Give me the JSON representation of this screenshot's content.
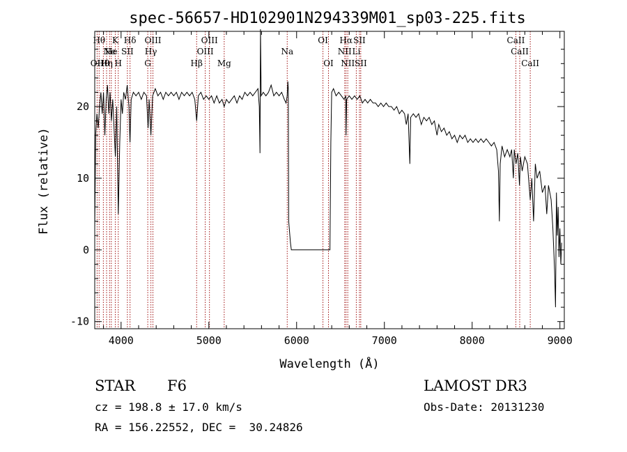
{
  "chart_data": {
    "type": "line",
    "title": "spec-56657-HD102901N294339M01_sp03-225.fits",
    "xlabel": "Wavelength (Å)",
    "ylabel": "Flux (relative)",
    "xlim": [
      3700,
      9050
    ],
    "ylim": [
      -11,
      30.5
    ],
    "xticks": [
      4000,
      5000,
      6000,
      7000,
      8000,
      9000
    ],
    "yticks": [
      -10,
      0,
      10,
      20
    ],
    "grid": false,
    "series": [
      {
        "points": [
          [
            3700,
            3
          ],
          [
            3710,
            16
          ],
          [
            3725,
            19
          ],
          [
            3740,
            17
          ],
          [
            3755,
            20
          ],
          [
            3770,
            22
          ],
          [
            3785,
            19
          ],
          [
            3800,
            22
          ],
          [
            3815,
            16
          ],
          [
            3830,
            21
          ],
          [
            3845,
            23
          ],
          [
            3860,
            19
          ],
          [
            3875,
            22
          ],
          [
            3890,
            18
          ],
          [
            3905,
            21
          ],
          [
            3920,
            17
          ],
          [
            3935,
            13
          ],
          [
            3950,
            20
          ],
          [
            3968,
            5
          ],
          [
            3985,
            15
          ],
          [
            4000,
            21
          ],
          [
            4015,
            19
          ],
          [
            4030,
            22
          ],
          [
            4050,
            21
          ],
          [
            4070,
            23
          ],
          [
            4090,
            20
          ],
          [
            4102,
            15
          ],
          [
            4115,
            21
          ],
          [
            4140,
            22
          ],
          [
            4170,
            21.5
          ],
          [
            4200,
            22
          ],
          [
            4230,
            21
          ],
          [
            4260,
            22
          ],
          [
            4290,
            21.5
          ],
          [
            4308,
            17
          ],
          [
            4320,
            21
          ],
          [
            4340,
            16
          ],
          [
            4360,
            21.5
          ],
          [
            4390,
            22.5
          ],
          [
            4420,
            21.5
          ],
          [
            4450,
            22
          ],
          [
            4480,
            21
          ],
          [
            4510,
            22
          ],
          [
            4540,
            21.5
          ],
          [
            4570,
            22
          ],
          [
            4600,
            21.5
          ],
          [
            4630,
            22
          ],
          [
            4660,
            21
          ],
          [
            4690,
            22
          ],
          [
            4720,
            21.5
          ],
          [
            4750,
            22
          ],
          [
            4780,
            21.5
          ],
          [
            4810,
            22
          ],
          [
            4840,
            21
          ],
          [
            4861,
            18
          ],
          [
            4880,
            21.5
          ],
          [
            4910,
            22
          ],
          [
            4940,
            21
          ],
          [
            4970,
            21.5
          ],
          [
            5000,
            21
          ],
          [
            5030,
            21.5
          ],
          [
            5060,
            20.5
          ],
          [
            5090,
            21.5
          ],
          [
            5120,
            20.5
          ],
          [
            5150,
            21
          ],
          [
            5175,
            20
          ],
          [
            5200,
            21
          ],
          [
            5230,
            20.5
          ],
          [
            5260,
            21
          ],
          [
            5290,
            21.5
          ],
          [
            5320,
            20.5
          ],
          [
            5350,
            21.5
          ],
          [
            5380,
            21
          ],
          [
            5410,
            22
          ],
          [
            5440,
            21.5
          ],
          [
            5470,
            22
          ],
          [
            5500,
            21.5
          ],
          [
            5530,
            22
          ],
          [
            5560,
            22.5
          ],
          [
            5575,
            20
          ],
          [
            5583,
            13.5
          ],
          [
            5588,
            31
          ],
          [
            5596,
            21.5
          ],
          [
            5620,
            22
          ],
          [
            5650,
            21.5
          ],
          [
            5680,
            22
          ],
          [
            5710,
            23
          ],
          [
            5740,
            21.5
          ],
          [
            5770,
            22
          ],
          [
            5800,
            21.5
          ],
          [
            5830,
            22
          ],
          [
            5860,
            21
          ],
          [
            5880,
            20.5
          ],
          [
            5892,
            21.5
          ],
          [
            5900,
            23.5
          ],
          [
            5905,
            22.5
          ],
          [
            5910,
            4
          ],
          [
            5930,
            1
          ],
          [
            5940,
            0
          ],
          [
            6050,
            0
          ],
          [
            6200,
            0
          ],
          [
            6380,
            0
          ],
          [
            6385,
            8
          ],
          [
            6390,
            15
          ],
          [
            6400,
            22
          ],
          [
            6420,
            22.5
          ],
          [
            6450,
            21.5
          ],
          [
            6480,
            22
          ],
          [
            6510,
            21.5
          ],
          [
            6540,
            21
          ],
          [
            6560,
            21.5
          ],
          [
            6563,
            16
          ],
          [
            6570,
            21
          ],
          [
            6600,
            21.5
          ],
          [
            6630,
            21
          ],
          [
            6660,
            21.5
          ],
          [
            6690,
            21
          ],
          [
            6720,
            21.5
          ],
          [
            6750,
            20.5
          ],
          [
            6780,
            21
          ],
          [
            6810,
            20.5
          ],
          [
            6840,
            21
          ],
          [
            6870,
            20.5
          ],
          [
            6900,
            20.5
          ],
          [
            6930,
            20
          ],
          [
            6960,
            20.5
          ],
          [
            6990,
            20
          ],
          [
            7020,
            20.5
          ],
          [
            7050,
            20
          ],
          [
            7080,
            20
          ],
          [
            7110,
            19.5
          ],
          [
            7140,
            20
          ],
          [
            7170,
            19
          ],
          [
            7200,
            19.5
          ],
          [
            7230,
            19
          ],
          [
            7250,
            17.5
          ],
          [
            7270,
            19
          ],
          [
            7290,
            12
          ],
          [
            7300,
            18.5
          ],
          [
            7330,
            19
          ],
          [
            7360,
            18.5
          ],
          [
            7390,
            19
          ],
          [
            7420,
            17.5
          ],
          [
            7450,
            18.5
          ],
          [
            7480,
            18
          ],
          [
            7510,
            18.5
          ],
          [
            7540,
            17.5
          ],
          [
            7570,
            18
          ],
          [
            7600,
            16
          ],
          [
            7620,
            17.5
          ],
          [
            7650,
            16.5
          ],
          [
            7680,
            17
          ],
          [
            7710,
            16
          ],
          [
            7740,
            16.5
          ],
          [
            7770,
            15.5
          ],
          [
            7800,
            16
          ],
          [
            7830,
            15
          ],
          [
            7860,
            16
          ],
          [
            7890,
            15.5
          ],
          [
            7920,
            16
          ],
          [
            7950,
            15
          ],
          [
            7980,
            15.5
          ],
          [
            8010,
            15
          ],
          [
            8040,
            15.5
          ],
          [
            8070,
            15
          ],
          [
            8100,
            15.5
          ],
          [
            8130,
            15
          ],
          [
            8160,
            15.5
          ],
          [
            8190,
            15
          ],
          [
            8220,
            14.5
          ],
          [
            8250,
            15
          ],
          [
            8280,
            14
          ],
          [
            8300,
            11
          ],
          [
            8310,
            4
          ],
          [
            8320,
            12
          ],
          [
            8340,
            14.5
          ],
          [
            8370,
            13
          ],
          [
            8400,
            14
          ],
          [
            8430,
            13
          ],
          [
            8450,
            14
          ],
          [
            8470,
            10
          ],
          [
            8480,
            14
          ],
          [
            8500,
            12
          ],
          [
            8520,
            13.5
          ],
          [
            8540,
            9
          ],
          [
            8550,
            13
          ],
          [
            8570,
            11
          ],
          [
            8600,
            13
          ],
          [
            8630,
            12
          ],
          [
            8662,
            7
          ],
          [
            8680,
            10
          ],
          [
            8700,
            4
          ],
          [
            8720,
            12
          ],
          [
            8740,
            10
          ],
          [
            8770,
            11
          ],
          [
            8800,
            8
          ],
          [
            8830,
            9
          ],
          [
            8850,
            5
          ],
          [
            8870,
            9
          ],
          [
            8900,
            7
          ],
          [
            8920,
            3
          ],
          [
            8940,
            -3
          ],
          [
            8950,
            -8
          ],
          [
            8960,
            8
          ],
          [
            8970,
            2
          ],
          [
            8980,
            6
          ],
          [
            8990,
            -1
          ],
          [
            9000,
            3
          ],
          [
            9010,
            -2
          ],
          [
            9020,
            1
          ]
        ]
      }
    ],
    "lines": [
      {
        "x": 3727,
        "labels": [
          "OII"
        ],
        "rows": [
          3
        ]
      },
      {
        "x": 3750,
        "labels": [
          "Hθ"
        ],
        "rows": [
          1
        ]
      },
      {
        "x": 3798,
        "labels": [
          "Hθ"
        ],
        "rows": [
          3
        ]
      },
      {
        "x": 3835,
        "labels": [
          "Hη"
        ],
        "rows": [
          3
        ]
      },
      {
        "x": 3869,
        "labels": [
          "Ne"
        ],
        "rows": [
          2
        ]
      },
      {
        "x": 3889,
        "labels": [
          "He"
        ],
        "rows": [
          2
        ]
      },
      {
        "x": 3934,
        "labels": [
          "K"
        ],
        "rows": [
          1
        ]
      },
      {
        "x": 3968,
        "labels": [
          "H"
        ],
        "rows": [
          3
        ]
      },
      {
        "x": 4072,
        "labels": [
          "SII"
        ],
        "rows": [
          2
        ]
      },
      {
        "x": 4102,
        "labels": [
          "Hδ"
        ],
        "rows": [
          1
        ]
      },
      {
        "x": 4304,
        "labels": [
          "G"
        ],
        "rows": [
          3
        ]
      },
      {
        "x": 4340,
        "labels": [
          "Hγ"
        ],
        "rows": [
          2
        ]
      },
      {
        "x": 4363,
        "labels": [
          "OIII"
        ],
        "rows": [
          1
        ]
      },
      {
        "x": 4861,
        "labels": [
          "Hβ"
        ],
        "rows": [
          3
        ]
      },
      {
        "x": 4959,
        "labels": [
          "OIII"
        ],
        "rows": [
          2
        ]
      },
      {
        "x": 5007,
        "labels": [
          "OIII"
        ],
        "rows": [
          1
        ]
      },
      {
        "x": 5175,
        "labels": [
          "Mg"
        ],
        "rows": [
          3
        ]
      },
      {
        "x": 5893,
        "labels": [
          "Na"
        ],
        "rows": [
          2
        ]
      },
      {
        "x": 6300,
        "labels": [
          "OI"
        ],
        "rows": [
          1
        ]
      },
      {
        "x": 6363,
        "labels": [
          "OI"
        ],
        "rows": [
          3
        ]
      },
      {
        "x": 6548,
        "labels": [
          "NII"
        ],
        "rows": [
          2
        ]
      },
      {
        "x": 6563,
        "labels": [
          "Hα"
        ],
        "rows": [
          1
        ]
      },
      {
        "x": 6583,
        "labels": [
          "NII"
        ],
        "rows": [
          3
        ]
      },
      {
        "x": 6716,
        "labels": [
          "SII"
        ],
        "rows": [
          1
        ]
      },
      {
        "x": 6731,
        "labels": [
          "SII"
        ],
        "rows": [
          3
        ]
      },
      {
        "x": 8498,
        "labels": [
          "CaII"
        ],
        "rows": [
          1
        ]
      },
      {
        "x": 8542,
        "labels": [
          "CaII"
        ],
        "rows": [
          2
        ]
      },
      {
        "x": 8662,
        "labels": [
          "CaII"
        ],
        "rows": [
          3
        ]
      },
      {
        "x": 6680,
        "labels": [
          "Li"
        ],
        "rows": [
          2
        ]
      }
    ]
  },
  "info": {
    "object_type": "STAR",
    "subclass": "F6",
    "survey": "LAMOST DR3",
    "cz": "cz = 198.8 ± 17.0 km/s",
    "obs_date": "Obs-Date: 20131230",
    "coords": "RA = 156.22552, DEC =  30.24826"
  },
  "colors": {
    "spectrum": "#000000",
    "line_markers": "#a01010",
    "axes": "#000000"
  }
}
